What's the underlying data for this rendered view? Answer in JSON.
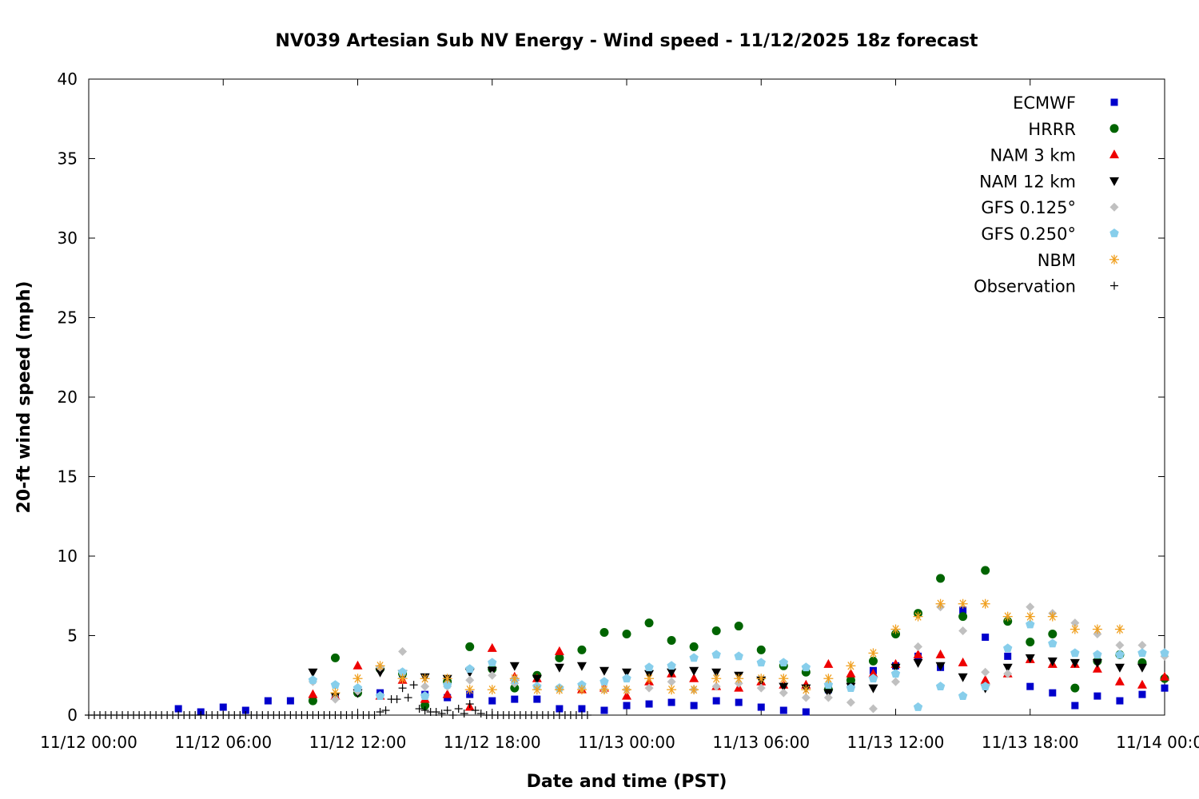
{
  "chart_data": {
    "type": "scatter",
    "title": "NV039 Artesian Sub NV Energy - Wind speed - 11/12/2025 18z forecast",
    "xlabel": "Date and time (PST)",
    "ylabel": "20-ft wind speed (mph)",
    "xlim": [
      "11/12 00:00",
      "11/14 00:00"
    ],
    "ylim": [
      0,
      40
    ],
    "x_ticks": [
      "11/12 00:00",
      "11/12 06:00",
      "11/12 12:00",
      "11/12 18:00",
      "11/13 00:00",
      "11/13 06:00",
      "11/13 12:00",
      "11/13 18:00",
      "11/14 00:00"
    ],
    "y_ticks": [
      "0",
      "5",
      "10",
      "15",
      "20",
      "25",
      "30",
      "35",
      "40"
    ],
    "legend_position": "top-right",
    "grid": false,
    "series": [
      {
        "name": "ECMWF",
        "marker": "square",
        "color": "#0000cc",
        "x": [
          "11/12 04:00",
          "11/12 05:00",
          "11/12 06:00",
          "11/12 07:00",
          "11/12 08:00",
          "11/12 09:00",
          "11/12 10:00",
          "11/12 11:00",
          "11/12 12:00",
          "11/12 13:00",
          "11/12 14:00",
          "11/12 15:00",
          "11/12 16:00",
          "11/12 17:00",
          "11/12 18:00",
          "11/12 19:00",
          "11/12 20:00",
          "11/12 21:00",
          "11/12 22:00",
          "11/12 23:00",
          "11/13 00:00",
          "11/13 01:00",
          "11/13 02:00",
          "11/13 03:00",
          "11/13 04:00",
          "11/13 05:00",
          "11/13 06:00",
          "11/13 07:00",
          "11/13 08:00",
          "11/13 09:00",
          "11/13 10:00",
          "11/13 11:00",
          "11/13 12:00",
          "11/13 13:00",
          "11/13 14:00",
          "11/13 15:00",
          "11/13 16:00",
          "11/13 17:00",
          "11/13 18:00",
          "11/13 19:00",
          "11/13 20:00",
          "11/13 21:00",
          "11/13 22:00",
          "11/13 23:00",
          "11/14 00:00"
        ],
        "y": [
          0.4,
          0.2,
          0.5,
          0.3,
          0.9,
          0.9,
          1.0,
          1.2,
          1.5,
          1.4,
          2.6,
          1.3,
          1.1,
          1.3,
          0.9,
          1.0,
          1.0,
          0.4,
          0.4,
          0.3,
          0.6,
          0.7,
          0.8,
          0.6,
          0.9,
          0.8,
          0.5,
          0.3,
          0.2,
          1.6,
          1.9,
          2.8,
          3.1,
          3.7,
          3.0,
          6.6,
          4.9,
          3.7,
          1.8,
          1.4,
          0.6,
          1.2,
          0.9,
          1.3,
          1.7
        ]
      },
      {
        "name": "HRRR",
        "marker": "circle",
        "color": "#006400",
        "x": [
          "11/12 10:00",
          "11/12 11:00",
          "11/12 12:00",
          "11/12 13:00",
          "11/12 14:00",
          "11/12 15:00",
          "11/12 16:00",
          "11/12 17:00",
          "11/12 18:00",
          "11/12 19:00",
          "11/12 20:00",
          "11/12 21:00",
          "11/12 22:00",
          "11/12 23:00",
          "11/13 00:00",
          "11/13 01:00",
          "11/13 02:00",
          "11/13 03:00",
          "11/13 04:00",
          "11/13 05:00",
          "11/13 06:00",
          "11/13 07:00",
          "11/13 08:00",
          "11/13 09:00",
          "11/13 10:00",
          "11/13 11:00",
          "11/13 12:00",
          "11/13 13:00",
          "11/13 14:00",
          "11/13 15:00",
          "11/13 16:00",
          "11/13 17:00",
          "11/13 18:00",
          "11/13 19:00",
          "11/13 20:00",
          "11/13 21:00",
          "11/13 22:00",
          "11/13 23:00",
          "11/14 00:00"
        ],
        "y": [
          0.9,
          3.6,
          1.4,
          2.9,
          2.6,
          0.6,
          2.1,
          4.3,
          2.9,
          1.7,
          2.5,
          3.6,
          4.1,
          5.2,
          5.1,
          5.8,
          4.7,
          4.3,
          5.3,
          5.6,
          4.1,
          3.1,
          2.7,
          1.6,
          2.2,
          3.4,
          5.1,
          6.4,
          8.6,
          6.2,
          9.1,
          5.9,
          4.6,
          5.1,
          1.7,
          3.4,
          3.8,
          3.3,
          2.3
        ]
      },
      {
        "name": "NAM 3 km",
        "marker": "triangle-up",
        "color": "#ee0000",
        "x": [
          "11/12 10:00",
          "11/12 11:00",
          "11/12 12:00",
          "11/12 13:00",
          "11/12 14:00",
          "11/12 15:00",
          "11/12 16:00",
          "11/12 17:00",
          "11/12 18:00",
          "11/12 19:00",
          "11/12 20:00",
          "11/12 21:00",
          "11/12 22:00",
          "11/12 23:00",
          "11/13 00:00",
          "11/13 01:00",
          "11/13 02:00",
          "11/13 03:00",
          "11/13 04:00",
          "11/13 05:00",
          "11/13 06:00",
          "11/13 07:00",
          "11/13 08:00",
          "11/13 09:00",
          "11/13 10:00",
          "11/13 11:00",
          "11/13 12:00",
          "11/13 13:00",
          "11/13 14:00",
          "11/13 15:00",
          "11/13 16:00",
          "11/13 17:00",
          "11/13 18:00",
          "11/13 19:00",
          "11/13 20:00",
          "11/13 21:00",
          "11/13 22:00",
          "11/13 23:00",
          "11/14 00:00"
        ],
        "y": [
          1.3,
          1.2,
          3.1,
          1.2,
          2.2,
          1.0,
          1.3,
          0.5,
          4.2,
          2.4,
          2.3,
          4.0,
          1.6,
          1.7,
          1.2,
          2.1,
          2.6,
          2.3,
          1.8,
          1.7,
          2.1,
          1.9,
          1.9,
          3.2,
          2.6,
          2.6,
          3.2,
          3.8,
          3.8,
          3.3,
          2.2,
          2.6,
          3.5,
          3.2,
          3.2,
          2.9,
          2.1,
          1.9,
          2.4
        ]
      },
      {
        "name": "NAM 12 km",
        "marker": "triangle-down",
        "color": "#000000",
        "x": [
          "11/12 10:00",
          "11/12 11:00",
          "11/12 12:00",
          "11/12 13:00",
          "11/12 14:00",
          "11/12 15:00",
          "11/12 16:00",
          "11/12 17:00",
          "11/12 18:00",
          "11/12 19:00",
          "11/12 20:00",
          "11/12 21:00",
          "11/12 22:00",
          "11/12 23:00",
          "11/13 00:00",
          "11/13 01:00",
          "11/13 02:00",
          "11/13 03:00",
          "11/13 04:00",
          "11/13 05:00",
          "11/13 06:00",
          "11/13 07:00",
          "11/13 08:00",
          "11/13 09:00",
          "11/13 10:00",
          "11/13 11:00",
          "11/13 12:00",
          "11/13 13:00",
          "11/13 14:00",
          "11/13 15:00",
          "11/13 16:00",
          "11/13 17:00",
          "11/13 18:00",
          "11/13 19:00",
          "11/13 20:00",
          "11/13 21:00",
          "11/13 22:00",
          "11/13 23:00"
        ],
        "y": [
          2.7,
          1.2,
          1.4,
          2.7,
          2.6,
          2.4,
          2.3,
          2.7,
          2.8,
          3.1,
          2.3,
          3.0,
          3.1,
          2.8,
          2.7,
          2.6,
          2.7,
          2.8,
          2.7,
          2.5,
          2.2,
          1.8,
          1.7,
          1.4,
          1.8,
          1.7,
          3.0,
          3.3,
          3.1,
          2.4,
          1.7,
          3.0,
          3.6,
          3.4,
          3.3,
          3.3,
          3.0,
          3.0
        ]
      },
      {
        "name": "GFS 0.125°",
        "marker": "diamond",
        "color": "#c0c0c0",
        "x": [
          "11/12 10:00",
          "11/12 11:00",
          "11/12 12:00",
          "11/12 13:00",
          "11/12 14:00",
          "11/12 15:00",
          "11/12 16:00",
          "11/12 17:00",
          "11/12 18:00",
          "11/12 19:00",
          "11/12 20:00",
          "11/12 21:00",
          "11/12 22:00",
          "11/12 23:00",
          "11/13 00:00",
          "11/13 01:00",
          "11/13 02:00",
          "11/13 03:00",
          "11/13 04:00",
          "11/13 05:00",
          "11/13 06:00",
          "11/13 07:00",
          "11/13 08:00",
          "11/13 09:00",
          "11/13 10:00",
          "11/13 11:00",
          "11/13 12:00",
          "11/13 13:00",
          "11/13 14:00",
          "11/13 15:00",
          "11/13 16:00",
          "11/13 17:00",
          "11/13 18:00",
          "11/13 19:00",
          "11/13 20:00",
          "11/13 21:00",
          "11/13 22:00",
          "11/13 23:00",
          "11/14 00:00"
        ],
        "y": [
          2.1,
          1.0,
          1.5,
          3.0,
          4.0,
          1.8,
          1.8,
          2.2,
          2.5,
          2.0,
          1.8,
          1.7,
          1.7,
          1.6,
          1.6,
          1.7,
          2.1,
          1.6,
          1.8,
          2.0,
          1.7,
          1.4,
          1.1,
          1.1,
          0.8,
          0.4,
          2.1,
          4.3,
          6.8,
          5.3,
          2.7,
          2.6,
          6.8,
          6.4,
          5.8,
          5.1,
          4.4,
          4.4,
          3.7
        ]
      },
      {
        "name": "GFS 0.250°",
        "marker": "pentagon",
        "color": "#87ceeb",
        "x": [
          "11/12 10:00",
          "11/12 11:00",
          "11/12 12:00",
          "11/12 13:00",
          "11/12 14:00",
          "11/12 15:00",
          "11/12 16:00",
          "11/12 17:00",
          "11/12 18:00",
          "11/12 19:00",
          "11/12 20:00",
          "11/12 21:00",
          "11/12 22:00",
          "11/12 23:00",
          "11/13 00:00",
          "11/13 01:00",
          "11/13 02:00",
          "11/13 03:00",
          "11/13 04:00",
          "11/13 05:00",
          "11/13 06:00",
          "11/13 07:00",
          "11/13 08:00",
          "11/13 09:00",
          "11/13 10:00",
          "11/13 11:00",
          "11/13 12:00",
          "11/13 13:00",
          "11/13 14:00",
          "11/13 15:00",
          "11/13 16:00",
          "11/13 17:00",
          "11/13 18:00",
          "11/13 19:00",
          "11/13 20:00",
          "11/13 21:00",
          "11/13 22:00",
          "11/13 23:00",
          "11/14 00:00"
        ],
        "y": [
          2.2,
          1.9,
          1.7,
          1.2,
          2.7,
          1.2,
          1.9,
          2.9,
          3.3,
          2.2,
          1.8,
          1.7,
          1.9,
          2.1,
          2.3,
          3.0,
          3.1,
          3.6,
          3.8,
          3.7,
          3.3,
          3.3,
          3.0,
          1.9,
          1.7,
          2.3,
          2.6,
          0.5,
          1.8,
          1.2,
          1.8,
          4.2,
          5.7,
          4.5,
          3.9,
          3.8,
          3.8,
          3.9,
          3.9
        ]
      },
      {
        "name": "NBM",
        "marker": "asterisk",
        "color": "#f0a020",
        "x": [
          "11/12 11:00",
          "11/12 12:00",
          "11/12 13:00",
          "11/12 14:00",
          "11/12 15:00",
          "11/12 16:00",
          "11/12 17:00",
          "11/12 18:00",
          "11/12 19:00",
          "11/12 20:00",
          "11/12 21:00",
          "11/12 22:00",
          "11/12 23:00",
          "11/13 00:00",
          "11/13 01:00",
          "11/13 02:00",
          "11/13 03:00",
          "11/13 04:00",
          "11/13 05:00",
          "11/13 06:00",
          "11/13 07:00",
          "11/13 08:00",
          "11/13 09:00",
          "11/13 10:00",
          "11/13 11:00",
          "11/13 12:00",
          "11/13 13:00",
          "11/13 14:00",
          "11/13 15:00",
          "11/13 16:00",
          "11/13 17:00",
          "11/13 18:00",
          "11/13 19:00",
          "11/13 20:00",
          "11/13 21:00",
          "11/13 22:00"
        ],
        "y": [
          1.4,
          2.3,
          3.1,
          2.3,
          2.3,
          2.3,
          1.6,
          1.6,
          2.3,
          1.6,
          1.6,
          1.6,
          1.6,
          1.6,
          2.3,
          1.6,
          1.6,
          2.3,
          2.3,
          2.3,
          2.3,
          1.6,
          2.3,
          3.1,
          3.9,
          5.4,
          6.2,
          7.0,
          7.0,
          7.0,
          6.2,
          6.2,
          6.2,
          5.4,
          5.4,
          5.4
        ]
      },
      {
        "name": "Observation",
        "marker": "plus",
        "color": "#000000",
        "x": [
          "11/12 00:00",
          "11/12 00:15",
          "11/12 00:30",
          "11/12 00:45",
          "11/12 01:00",
          "11/12 01:15",
          "11/12 01:30",
          "11/12 01:45",
          "11/12 02:00",
          "11/12 02:15",
          "11/12 02:30",
          "11/12 02:45",
          "11/12 03:00",
          "11/12 03:15",
          "11/12 03:30",
          "11/12 03:45",
          "11/12 04:00",
          "11/12 04:15",
          "11/12 04:30",
          "11/12 04:45",
          "11/12 05:00",
          "11/12 05:15",
          "11/12 05:30",
          "11/12 05:45",
          "11/12 06:00",
          "11/12 06:15",
          "11/12 06:30",
          "11/12 06:45",
          "11/12 07:00",
          "11/12 07:15",
          "11/12 07:30",
          "11/12 07:45",
          "11/12 08:00",
          "11/12 08:15",
          "11/12 08:30",
          "11/12 08:45",
          "11/12 09:00",
          "11/12 09:15",
          "11/12 09:30",
          "11/12 09:45",
          "11/12 10:00",
          "11/12 10:15",
          "11/12 10:30",
          "11/12 10:45",
          "11/12 11:00",
          "11/12 11:15",
          "11/12 11:30",
          "11/12 11:45",
          "11/12 12:00",
          "11/12 12:15",
          "11/12 12:30",
          "11/12 12:45",
          "11/12 13:00",
          "11/12 13:15",
          "11/12 13:30",
          "11/12 13:45",
          "11/12 14:00",
          "11/12 14:15",
          "11/12 14:30",
          "11/12 14:45",
          "11/12 15:00",
          "11/12 15:15",
          "11/12 15:30",
          "11/12 15:45",
          "11/12 16:00",
          "11/12 16:15",
          "11/12 16:30",
          "11/12 16:45",
          "11/12 17:00",
          "11/12 17:15",
          "11/12 17:30",
          "11/12 17:45",
          "11/12 18:00",
          "11/12 18:15",
          "11/12 18:30",
          "11/12 18:45",
          "11/12 19:00",
          "11/12 19:15",
          "11/12 19:30",
          "11/12 19:45",
          "11/12 20:00",
          "11/12 20:15",
          "11/12 20:30",
          "11/12 20:45",
          "11/12 21:00",
          "11/12 21:15",
          "11/12 21:30",
          "11/12 21:45",
          "11/12 22:00",
          "11/12 22:15"
        ],
        "y": [
          0,
          0,
          0,
          0,
          0,
          0,
          0,
          0,
          0,
          0,
          0,
          0,
          0,
          0,
          0,
          0,
          0,
          0,
          0,
          0,
          0,
          0,
          0,
          0,
          0,
          0,
          0,
          0,
          0,
          0,
          0,
          0,
          0,
          0,
          0,
          0,
          0,
          0,
          0,
          0,
          0,
          0,
          0,
          0,
          0,
          0,
          0,
          0,
          0,
          0,
          0,
          0,
          0.2,
          0.3,
          1.0,
          1.0,
          1.7,
          1.1,
          1.9,
          0.4,
          0.3,
          0.2,
          0.2,
          0.1,
          0.3,
          0,
          0.4,
          0.1,
          0.7,
          0.3,
          0.1,
          0,
          0,
          0,
          0,
          0,
          0,
          0,
          0,
          0,
          0,
          0,
          0,
          0,
          0,
          0,
          0,
          0,
          0,
          0
        ]
      }
    ]
  }
}
